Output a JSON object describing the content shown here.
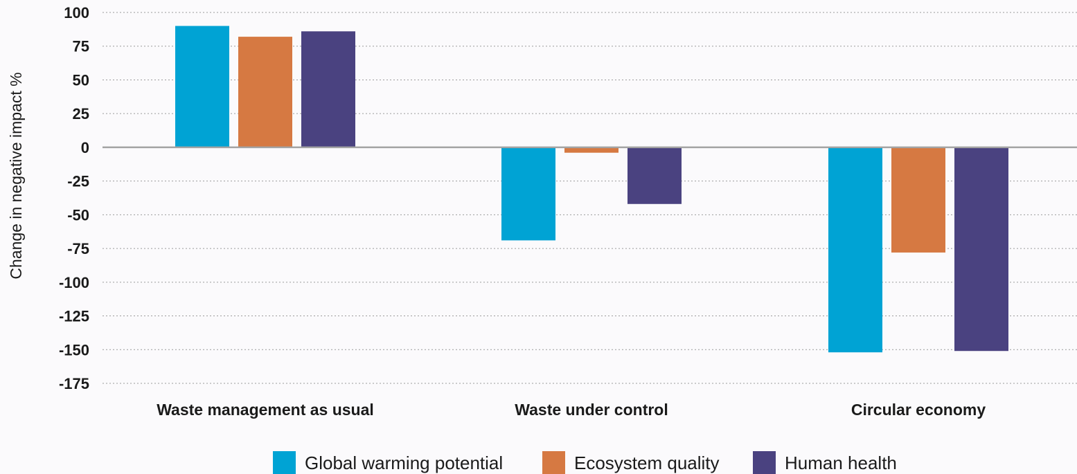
{
  "chart_data": {
    "type": "bar",
    "title": "",
    "xlabel": "",
    "ylabel": "Change in negative impact %",
    "ylim": [
      -175,
      100
    ],
    "yticks": [
      100,
      75,
      50,
      25,
      0,
      -25,
      -50,
      -75,
      -100,
      -125,
      -150,
      -175
    ],
    "grid": true,
    "legend_position": "bottom",
    "categories": [
      "Waste management as usual",
      "Waste under control",
      "Circular economy"
    ],
    "series": [
      {
        "name": "Global warming potential",
        "color": "#00a3d4",
        "values": [
          90,
          -69,
          -152
        ]
      },
      {
        "name": "Ecosystem quality",
        "color": "#d67942",
        "values": [
          82,
          -4,
          -78
        ]
      },
      {
        "name": "Human health",
        "color": "#4a4280",
        "values": [
          86,
          -42,
          -151
        ]
      }
    ]
  }
}
